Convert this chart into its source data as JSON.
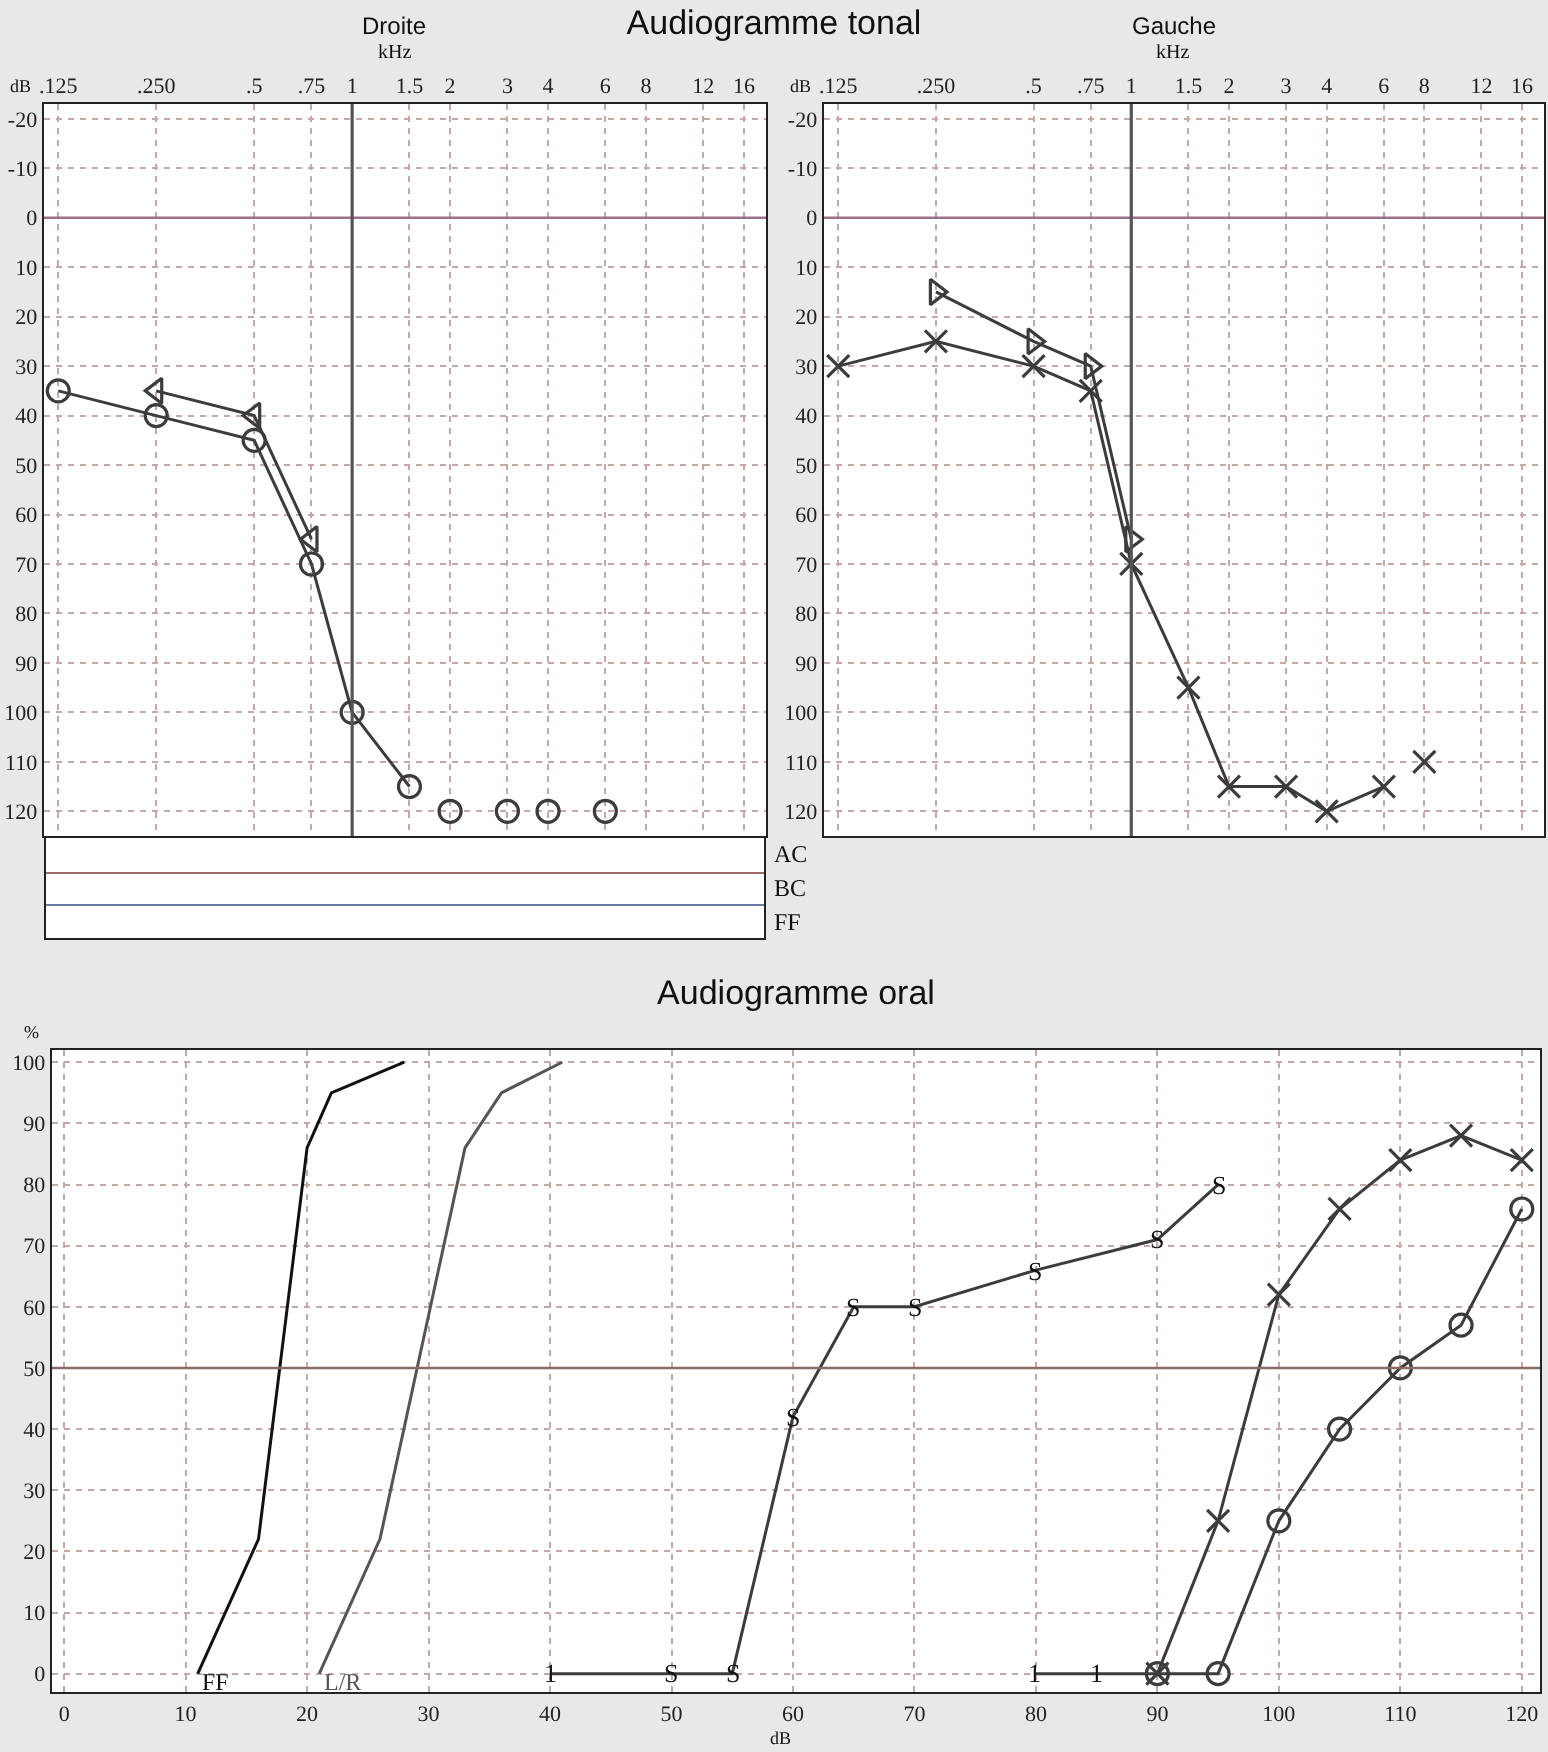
{
  "chart_data": [
    {
      "type": "line",
      "title": "Audiogramme tonal",
      "subtitle": "Droite",
      "xlabel": "kHz",
      "ylabel": "dB",
      "log": "x",
      "xlim": [
        0.113,
        18.7
      ],
      "xticks": [
        {
          "value": 0.125,
          "label": ".125"
        },
        {
          "value": 0.25,
          "label": ".250"
        },
        {
          "value": 0.5,
          "label": ".5"
        },
        {
          "value": 0.75,
          "label": ".75"
        },
        1,
        1.5,
        2,
        3,
        4,
        6,
        8,
        12,
        16
      ],
      "ylim": [
        125,
        -23
      ],
      "yticks": [
        -20,
        -10,
        0,
        10,
        20,
        30,
        40,
        50,
        60,
        70,
        80,
        90,
        100,
        110,
        120
      ],
      "grid": true,
      "ref_lines": [
        {
          "axis": "y",
          "value": 0,
          "color": "#9c7088"
        },
        {
          "axis": "x",
          "value": 1,
          "color": "#555555"
        }
      ],
      "annotations": [
        "AC",
        "BC",
        "FF"
      ],
      "series": [
        {
          "x": [
            0.125,
            0.25,
            0.5,
            0.75,
            1,
            1.5
          ],
          "values": [
            35,
            40,
            45,
            70,
            100,
            115
          ],
          "color": "#3c3c3c",
          "marker": "circle"
        },
        {
          "x": [
            0.25,
            0.5,
            0.75
          ],
          "values": [
            35,
            40,
            65
          ],
          "color": "#3c3c3c",
          "marker": "triangle"
        },
        {
          "type": "scatter",
          "x": [
            2,
            3,
            4,
            6
          ],
          "values": [
            120,
            120,
            120,
            120
          ],
          "color": "#3c3c3c",
          "marker": "circle"
        }
      ]
    },
    {
      "type": "line",
      "subtitle": "Gauche",
      "xlabel": "kHz",
      "ylabel": "dB",
      "log": "x",
      "xlim": [
        0.113,
        18.7
      ],
      "xticks": [
        {
          "value": 0.125,
          "label": ".125"
        },
        {
          "value": 0.25,
          "label": ".250"
        },
        {
          "value": 0.5,
          "label": ".5"
        },
        {
          "value": 0.75,
          "label": ".75"
        },
        1,
        1.5,
        2,
        3,
        4,
        6,
        8,
        12,
        16
      ],
      "ylim": [
        125,
        -23
      ],
      "yticks": [
        -20,
        -10,
        0,
        10,
        20,
        30,
        40,
        50,
        60,
        70,
        80,
        90,
        100,
        110,
        120
      ],
      "grid": true,
      "ref_lines": [
        {
          "axis": "y",
          "value": 0,
          "color": "#9c7088"
        },
        {
          "axis": "x",
          "value": 1,
          "color": "#555555"
        }
      ],
      "series": [
        {
          "x": [
            0.125,
            0.25,
            0.5,
            0.75,
            1,
            1.5,
            2,
            3,
            4,
            6
          ],
          "values": [
            30,
            25,
            30,
            35,
            70,
            95,
            115,
            115,
            120,
            115
          ],
          "color": "#3c3c3c",
          "marker": "cross"
        },
        {
          "x": [
            0.25,
            0.5,
            0.75,
            1
          ],
          "values": [
            15,
            25,
            30,
            65
          ],
          "color": "#3c3c3c",
          "marker": "triangle"
        },
        {
          "type": "scatter",
          "x": [
            8
          ],
          "values": [
            110
          ],
          "color": "#3c3c3c",
          "marker": "cross"
        }
      ]
    },
    {
      "type": "line",
      "title": "Audiogramme oral",
      "xlabel": "dB",
      "ylabel": "%",
      "xlim": [
        -1,
        121.5
      ],
      "xticks": [
        0,
        10,
        20,
        30,
        40,
        50,
        60,
        70,
        80,
        90,
        100,
        110,
        120
      ],
      "ylim": [
        -3,
        102
      ],
      "yticks": [
        0,
        10,
        20,
        30,
        40,
        50,
        60,
        70,
        80,
        90,
        100
      ],
      "grid": true,
      "ref_lines": [
        {
          "axis": "y",
          "value": 50,
          "color": "#8a6a6a"
        }
      ],
      "annotations": [
        {
          "text": "1",
          "x": 40,
          "y": 0
        },
        {
          "text": "S",
          "x": 50,
          "y": 0
        },
        {
          "text": "S",
          "x": 55,
          "y": 0
        },
        {
          "text": "S",
          "x": 60,
          "y": 42
        },
        {
          "text": "S",
          "x": 65,
          "y": 60
        },
        {
          "text": "S",
          "x": 70,
          "y": 60
        },
        {
          "text": "S",
          "x": 80,
          "y": 66
        },
        {
          "text": "S",
          "x": 90,
          "y": 71
        },
        {
          "text": "S",
          "x": 95,
          "y": 80
        },
        {
          "text": "1",
          "x": 80,
          "y": 0
        },
        {
          "text": "1",
          "x": 85,
          "y": 0
        }
      ],
      "series": [
        {
          "name": "FF",
          "x": [
            11,
            16,
            20,
            22,
            28
          ],
          "values": [
            0,
            22,
            86,
            95,
            100
          ],
          "color": "#111111",
          "marker": "none"
        },
        {
          "name": "L/R",
          "x": [
            21,
            26,
            33,
            36,
            41
          ],
          "values": [
            0,
            22,
            86,
            95,
            100
          ],
          "color": "#555555",
          "marker": "none"
        },
        {
          "x": [
            40,
            50,
            55,
            60,
            65,
            70,
            80,
            90,
            95
          ],
          "values": [
            0,
            0,
            0,
            42,
            60,
            60,
            66,
            71,
            80
          ],
          "color": "#3c3c3c",
          "marker": "none"
        },
        {
          "x": [
            80,
            85,
            90
          ],
          "values": [
            0,
            0,
            0
          ],
          "color": "#3c3c3c",
          "marker": "none"
        },
        {
          "x": [
            90,
            95,
            100,
            105,
            110,
            115,
            120
          ],
          "values": [
            0,
            0,
            25,
            40,
            50,
            57,
            76
          ],
          "color": "#3c3c3c",
          "marker": "circle"
        },
        {
          "x": [
            90,
            95,
            100,
            105,
            110,
            115,
            120
          ],
          "values": [
            0,
            25,
            62,
            76,
            84,
            88,
            84
          ],
          "color": "#3c3c3c",
          "marker": "cross"
        }
      ]
    }
  ]
}
